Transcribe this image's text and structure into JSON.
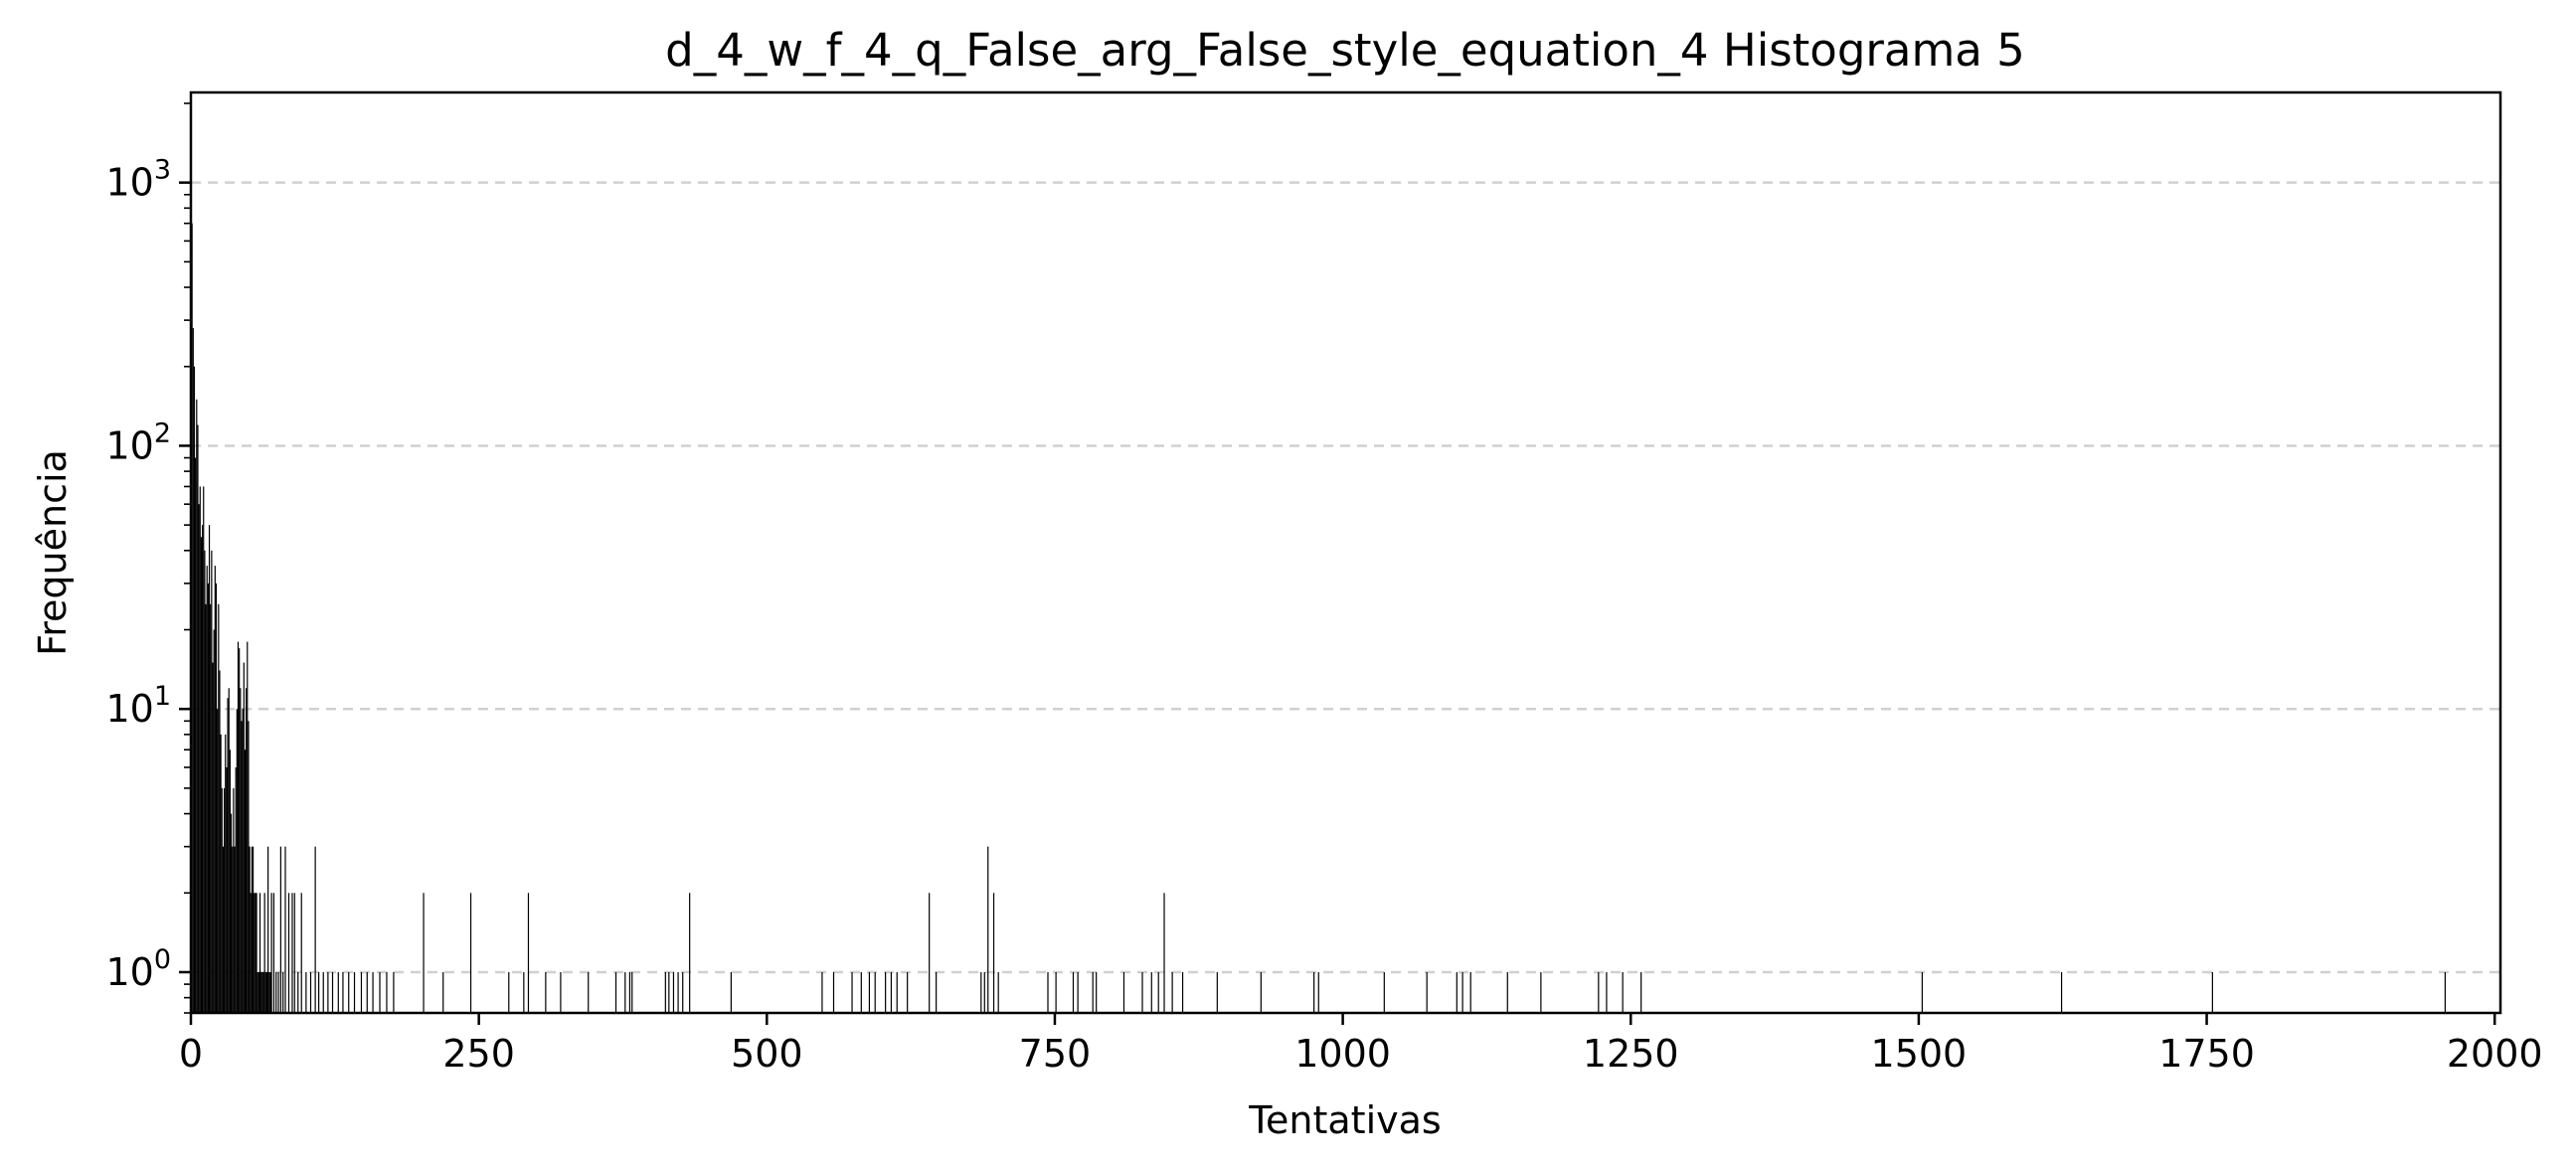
{
  "chart_data": {
    "type": "bar",
    "title": "d_4_w_f_4_q_False_arg_False_style_equation_4 Histograma 5",
    "xlabel": "Tentativas",
    "ylabel": "Frequência",
    "xlim": [
      0,
      2005
    ],
    "ylim": [
      0.7,
      2200
    ],
    "yscale": "log",
    "grid": "y-major dashed",
    "legend": "none",
    "bar_color": "#000000",
    "bar_width": 1,
    "x_ticks": [
      0,
      250,
      500,
      750,
      1000,
      1250,
      1500,
      1750,
      2000
    ],
    "x_tick_labels": [
      "0",
      "250",
      "500",
      "750",
      "1000",
      "1250",
      "1500",
      "1750",
      "2000"
    ],
    "y_ticks": [
      1,
      10,
      100,
      1000
    ],
    "y_tick_labels": [
      {
        "base": "10",
        "exp": "0"
      },
      {
        "base": "10",
        "exp": "1"
      },
      {
        "base": "10",
        "exp": "2"
      },
      {
        "base": "10",
        "exp": "3"
      }
    ],
    "x": [
      1,
      2,
      3,
      4,
      5,
      6,
      7,
      8,
      9,
      10,
      11,
      12,
      13,
      14,
      15,
      16,
      17,
      18,
      19,
      20,
      21,
      22,
      23,
      24,
      25,
      26,
      27,
      28,
      29,
      30,
      31,
      32,
      33,
      34,
      35,
      36,
      37,
      38,
      39,
      40,
      41,
      42,
      43,
      44,
      45,
      46,
      47,
      48,
      49,
      50,
      51,
      52,
      53,
      54,
      55,
      56,
      57,
      58,
      59,
      60,
      61,
      62,
      63,
      64,
      65,
      66,
      67,
      68,
      69,
      70,
      72,
      74,
      76,
      78,
      80,
      82,
      85,
      88,
      90,
      93,
      96,
      100,
      104,
      108,
      111,
      115,
      119,
      123,
      128,
      132,
      137,
      142,
      148,
      153,
      158,
      164,
      170,
      176,
      202,
      219,
      243,
      276,
      289,
      293,
      308,
      321,
      345,
      369,
      377,
      381,
      383,
      412,
      415,
      419,
      423,
      427,
      433,
      469,
      548,
      558,
      574,
      582,
      589,
      594,
      603,
      608,
      613,
      622,
      641,
      647,
      686,
      689,
      692,
      697,
      701,
      744,
      751,
      766,
      770,
      783,
      786,
      810,
      826,
      834,
      840,
      845,
      852,
      861,
      891,
      929,
      975,
      979,
      1036,
      1073,
      1099,
      1104,
      1111,
      1143,
      1172,
      1222,
      1229,
      1243,
      1259,
      1503,
      1624,
      1755,
      1957
    ],
    "values": [
      700,
      280,
      200,
      90,
      150,
      120,
      60,
      70,
      45,
      50,
      70,
      40,
      25,
      35,
      30,
      50,
      25,
      40,
      15,
      20,
      35,
      30,
      10,
      25,
      14,
      8,
      5,
      3,
      5,
      8,
      6,
      11,
      12,
      7,
      4,
      3,
      5,
      3,
      6,
      10,
      18,
      17,
      12,
      9,
      10,
      15,
      7,
      12,
      18,
      9,
      3,
      2,
      3,
      3,
      2,
      2,
      2,
      1,
      1,
      2,
      1,
      1,
      1,
      2,
      1,
      1,
      3,
      1,
      1,
      2,
      2,
      1,
      1,
      3,
      1,
      3,
      2,
      2,
      2,
      1,
      2,
      1,
      1,
      3,
      1,
      1,
      1,
      1,
      1,
      1,
      1,
      1,
      1,
      1,
      1,
      1,
      1,
      1,
      2,
      1,
      2,
      1,
      1,
      2,
      1,
      1,
      1,
      1,
      1,
      1,
      1,
      1,
      1,
      1,
      1,
      1,
      2,
      1,
      1,
      1,
      1,
      1,
      1,
      1,
      1,
      1,
      1,
      1,
      2,
      1,
      1,
      1,
      3,
      2,
      1,
      1,
      1,
      1,
      1,
      1,
      1,
      1,
      1,
      1,
      1,
      2,
      1,
      1,
      1,
      1,
      1,
      1,
      1,
      1,
      1,
      1,
      1,
      1,
      1,
      1,
      1,
      1,
      1,
      1,
      1,
      1,
      1
    ]
  }
}
